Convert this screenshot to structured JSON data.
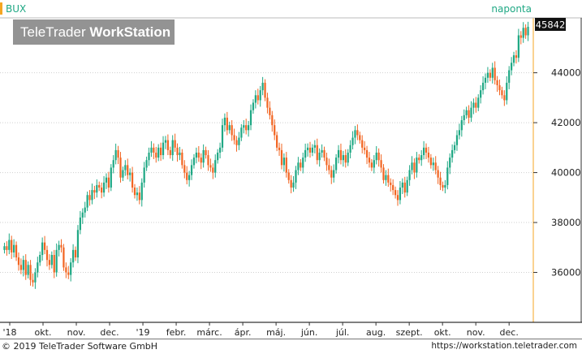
{
  "symbol": "BUX",
  "period_label": "naponta",
  "watermark": {
    "brand_regular": "TeleTrader",
    "brand_bold": "WorkStation"
  },
  "last_value_label": "45842",
  "footer": {
    "copyright": "© 2019 TeleTrader Software GmbH",
    "url": "https://workstation.teletrader.com"
  },
  "colors": {
    "up": "#1fa884",
    "down": "#f26522",
    "accent": "#f5a623",
    "grid": "#cfcfcf"
  },
  "chart_data": {
    "type": "candlestick",
    "title": "BUX",
    "y_ticks": [
      36000,
      38000,
      40000,
      42000,
      44000
    ],
    "ylim": [
      34000,
      46200
    ],
    "x_tick_labels": [
      "'18",
      "okt.",
      "nov.",
      "dec.",
      "'19",
      "febr.",
      "márc.",
      "ápr.",
      "máj.",
      "jún.",
      "júl.",
      "aug.",
      "szept.",
      "okt.",
      "nov.",
      "dec."
    ],
    "closes": [
      37050,
      36900,
      37300,
      36800,
      37100,
      36600,
      36300,
      36100,
      36500,
      35900,
      36300,
      35700,
      35600,
      36000,
      36400,
      36700,
      37200,
      36900,
      36500,
      36300,
      36700,
      36000,
      36900,
      37100,
      37000,
      36200,
      36000,
      35900,
      36400,
      36900,
      36600,
      37700,
      38200,
      38400,
      38600,
      39100,
      38900,
      39300,
      39200,
      39500,
      39400,
      39200,
      39600,
      39800,
      39400,
      40200,
      40500,
      40900,
      40600,
      39800,
      40100,
      40300,
      39900,
      40000,
      39400,
      39100,
      39200,
      38900,
      39600,
      40200,
      40500,
      40800,
      41000,
      40800,
      40600,
      41000,
      40700,
      41200,
      41300,
      40900,
      40700,
      41300,
      41000,
      40700,
      40800,
      40300,
      40000,
      39700,
      39900,
      40300,
      40600,
      40800,
      40600,
      40400,
      40900,
      40700,
      40300,
      40200,
      40000,
      40500,
      40800,
      41000,
      41900,
      42200,
      41700,
      41900,
      41500,
      41300,
      41100,
      41400,
      41800,
      41900,
      41700,
      41900,
      42500,
      42800,
      43100,
      42900,
      43300,
      43600,
      43000,
      42600,
      42300,
      41900,
      41500,
      41000,
      40900,
      40300,
      40600,
      40000,
      39700,
      39400,
      39600,
      40100,
      40400,
      40200,
      40600,
      40900,
      41000,
      40800,
      41000,
      41100,
      40500,
      40800,
      40900,
      40600,
      40300,
      40100,
      39800,
      40100,
      40600,
      40900,
      40500,
      40700,
      40400,
      40800,
      41100,
      41400,
      41700,
      41500,
      41300,
      41000,
      40900,
      40600,
      40400,
      40200,
      40500,
      40800,
      40500,
      40200,
      39700,
      39900,
      39600,
      39500,
      39300,
      39100,
      38900,
      39400,
      39600,
      39200,
      39700,
      40100,
      40400,
      40000,
      40600,
      40500,
      40700,
      41000,
      40800,
      40600,
      40300,
      40400,
      40100,
      39800,
      39500,
      39400,
      39500,
      40200,
      40600,
      40900,
      41100,
      41500,
      41700,
      42100,
      42300,
      42500,
      42200,
      42600,
      42800,
      42600,
      43000,
      43300,
      43600,
      43800,
      44000,
      43800,
      44200,
      43700,
      43500,
      43300,
      43100,
      42900,
      43600,
      44100,
      44400,
      44700,
      44600,
      45500,
      45400,
      45800,
      45500,
      45842
    ]
  }
}
